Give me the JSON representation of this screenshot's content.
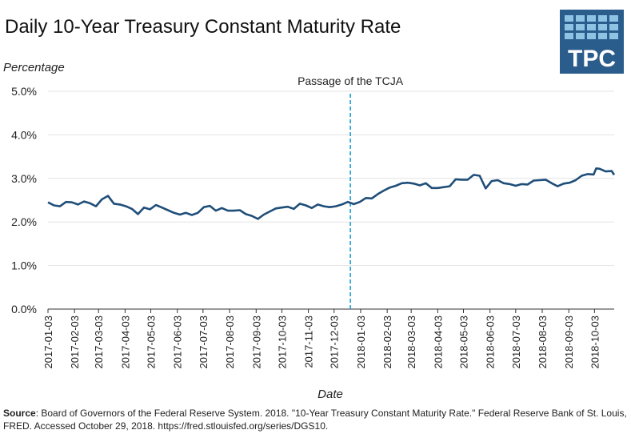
{
  "title": "Daily 10-Year Treasury Constant Maturity Rate",
  "logo": {
    "text": "TPC",
    "icon": "tpc-logo",
    "color": "#2b5d8c",
    "square_color": "#8fc3e4"
  },
  "source": {
    "label": "Source",
    "text": ": Board of Governors of the Federal Reserve System. 2018. \"10-Year Treasury Constant Maturity Rate.\" Federal Reserve Bank of St. Louis, FRED. Accessed October 29, 2018. https://fred.stlouisfed.org/series/DGS10."
  },
  "chart_data": {
    "type": "line",
    "ylabel": "Percentage",
    "xlabel": "Date",
    "ylim": [
      0,
      5
    ],
    "xlim": [
      "2017-01-03",
      "2018-10-26"
    ],
    "y_ticks": [
      "0.0%",
      "1.0%",
      "2.0%",
      "3.0%",
      "4.0%",
      "5.0%"
    ],
    "x_ticks": [
      "2017-01-03",
      "2017-02-03",
      "2017-03-03",
      "2017-04-03",
      "2017-05-03",
      "2017-06-03",
      "2017-07-03",
      "2017-08-03",
      "2017-09-03",
      "2017-10-03",
      "2017-11-03",
      "2017-12-03",
      "2018-01-03",
      "2018-02-03",
      "2018-03-03",
      "2018-04-03",
      "2018-05-03",
      "2018-06-03",
      "2018-07-03",
      "2018-08-03",
      "2018-09-03",
      "2018-10-03"
    ],
    "grid": true,
    "line_color": "#1f4e79",
    "annotation": {
      "label": "Passage of the TCJA",
      "date": "2017-12-22",
      "color": "#1a9fd1"
    },
    "series": [
      {
        "points": [
          [
            "2017-01-03",
            2.45
          ],
          [
            "2017-01-10",
            2.38
          ],
          [
            "2017-01-17",
            2.36
          ],
          [
            "2017-01-24",
            2.46
          ],
          [
            "2017-01-31",
            2.45
          ],
          [
            "2017-02-07",
            2.4
          ],
          [
            "2017-02-14",
            2.47
          ],
          [
            "2017-02-21",
            2.43
          ],
          [
            "2017-02-28",
            2.36
          ],
          [
            "2017-03-07",
            2.52
          ],
          [
            "2017-03-14",
            2.6
          ],
          [
            "2017-03-21",
            2.42
          ],
          [
            "2017-03-28",
            2.4
          ],
          [
            "2017-04-04",
            2.36
          ],
          [
            "2017-04-11",
            2.3
          ],
          [
            "2017-04-18",
            2.18
          ],
          [
            "2017-04-25",
            2.33
          ],
          [
            "2017-05-02",
            2.29
          ],
          [
            "2017-05-09",
            2.39
          ],
          [
            "2017-05-16",
            2.33
          ],
          [
            "2017-05-23",
            2.27
          ],
          [
            "2017-05-30",
            2.21
          ],
          [
            "2017-06-06",
            2.17
          ],
          [
            "2017-06-13",
            2.21
          ],
          [
            "2017-06-20",
            2.16
          ],
          [
            "2017-06-27",
            2.21
          ],
          [
            "2017-07-04",
            2.34
          ],
          [
            "2017-07-11",
            2.37
          ],
          [
            "2017-07-18",
            2.26
          ],
          [
            "2017-07-25",
            2.32
          ],
          [
            "2017-08-01",
            2.26
          ],
          [
            "2017-08-08",
            2.26
          ],
          [
            "2017-08-15",
            2.27
          ],
          [
            "2017-08-22",
            2.18
          ],
          [
            "2017-08-29",
            2.14
          ],
          [
            "2017-09-05",
            2.07
          ],
          [
            "2017-09-12",
            2.17
          ],
          [
            "2017-09-19",
            2.24
          ],
          [
            "2017-09-26",
            2.31
          ],
          [
            "2017-10-03",
            2.33
          ],
          [
            "2017-10-10",
            2.35
          ],
          [
            "2017-10-17",
            2.3
          ],
          [
            "2017-10-24",
            2.42
          ],
          [
            "2017-10-31",
            2.38
          ],
          [
            "2017-11-07",
            2.32
          ],
          [
            "2017-11-14",
            2.4
          ],
          [
            "2017-11-21",
            2.36
          ],
          [
            "2017-11-28",
            2.34
          ],
          [
            "2017-12-05",
            2.36
          ],
          [
            "2017-12-12",
            2.4
          ],
          [
            "2017-12-19",
            2.46
          ],
          [
            "2017-12-26",
            2.41
          ],
          [
            "2018-01-02",
            2.46
          ],
          [
            "2018-01-09",
            2.55
          ],
          [
            "2018-01-16",
            2.54
          ],
          [
            "2018-01-23",
            2.64
          ],
          [
            "2018-01-30",
            2.72
          ],
          [
            "2018-02-06",
            2.79
          ],
          [
            "2018-02-13",
            2.83
          ],
          [
            "2018-02-20",
            2.89
          ],
          [
            "2018-02-27",
            2.9
          ],
          [
            "2018-03-06",
            2.88
          ],
          [
            "2018-03-13",
            2.84
          ],
          [
            "2018-03-20",
            2.89
          ],
          [
            "2018-03-27",
            2.78
          ],
          [
            "2018-04-03",
            2.78
          ],
          [
            "2018-04-10",
            2.8
          ],
          [
            "2018-04-17",
            2.82
          ],
          [
            "2018-04-24",
            2.98
          ],
          [
            "2018-05-01",
            2.97
          ],
          [
            "2018-05-08",
            2.97
          ],
          [
            "2018-05-15",
            3.08
          ],
          [
            "2018-05-22",
            3.06
          ],
          [
            "2018-05-29",
            2.77
          ],
          [
            "2018-06-05",
            2.94
          ],
          [
            "2018-06-12",
            2.96
          ],
          [
            "2018-06-19",
            2.89
          ],
          [
            "2018-06-26",
            2.87
          ],
          [
            "2018-07-03",
            2.83
          ],
          [
            "2018-07-10",
            2.87
          ],
          [
            "2018-07-17",
            2.86
          ],
          [
            "2018-07-24",
            2.95
          ],
          [
            "2018-07-31",
            2.96
          ],
          [
            "2018-08-07",
            2.97
          ],
          [
            "2018-08-14",
            2.89
          ],
          [
            "2018-08-21",
            2.82
          ],
          [
            "2018-08-28",
            2.88
          ],
          [
            "2018-09-04",
            2.9
          ],
          [
            "2018-09-11",
            2.96
          ],
          [
            "2018-09-18",
            3.06
          ],
          [
            "2018-09-25",
            3.1
          ],
          [
            "2018-10-02",
            3.09
          ],
          [
            "2018-10-05",
            3.23
          ],
          [
            "2018-10-09",
            3.22
          ],
          [
            "2018-10-16",
            3.16
          ],
          [
            "2018-10-23",
            3.17
          ],
          [
            "2018-10-26",
            3.08
          ]
        ]
      }
    ]
  }
}
